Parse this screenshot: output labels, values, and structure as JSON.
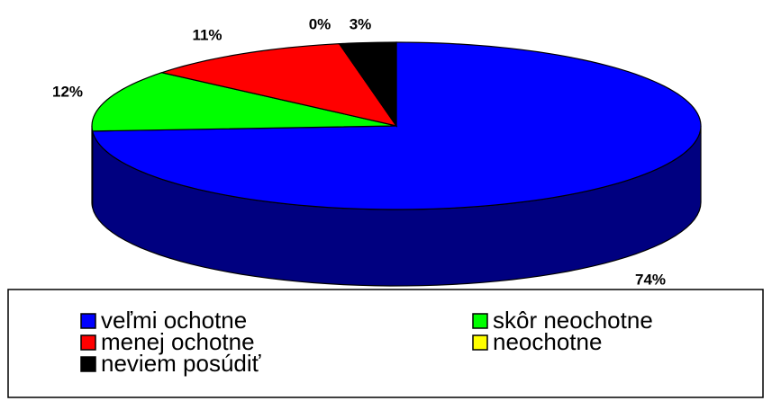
{
  "chart_data": {
    "type": "pie",
    "categories": [
      "veľmi ochotne",
      "skôr neochotne",
      "menej ochotne",
      "neochotne",
      "neviem posúdiť"
    ],
    "values": [
      74,
      12,
      11,
      0,
      3
    ],
    "value_labels": [
      "74%",
      "12%",
      "11%",
      "0%",
      "3%"
    ],
    "colors": [
      "#0000ff",
      "#00ff00",
      "#ff0000",
      "#ffff00",
      "#000000"
    ],
    "legend": "bottom"
  }
}
